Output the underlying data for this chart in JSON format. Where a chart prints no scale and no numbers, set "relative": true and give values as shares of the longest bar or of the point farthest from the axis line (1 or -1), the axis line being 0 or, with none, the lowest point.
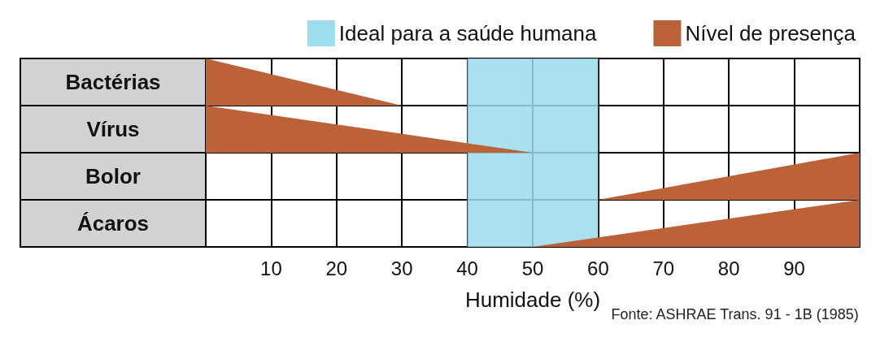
{
  "chart_data": [
    {
      "type": "area",
      "relative": true,
      "ylabel": "Bactérias",
      "xlim": [
        0,
        100
      ],
      "xticks": [
        10,
        20,
        30,
        40,
        50,
        60,
        70,
        80,
        90
      ],
      "grid": "x",
      "tick_labels": false,
      "legend": "top right",
      "bands": [
        {
          "axis": "x",
          "from": 40,
          "to": 60,
          "label": "Ideal para a saúde humana",
          "color": "#9cdcec"
        }
      ],
      "series": [
        {
          "name": "Nível de presença",
          "color": "#bb6238",
          "x": [
            0,
            30
          ],
          "values": [
            1,
            0
          ]
        }
      ]
    },
    {
      "type": "area",
      "relative": true,
      "ylabel": "Vírus",
      "xlim": [
        0,
        100
      ],
      "xticks": [
        10,
        20,
        30,
        40,
        50,
        60,
        70,
        80,
        90
      ],
      "grid": "x",
      "tick_labels": false,
      "bands": [
        {
          "axis": "x",
          "from": 40,
          "to": 60,
          "color": "#9cdcec"
        }
      ],
      "series": [
        {
          "color": "#bb6238",
          "x": [
            0,
            50
          ],
          "values": [
            1,
            0
          ]
        }
      ]
    },
    {
      "type": "area",
      "relative": true,
      "ylabel": "Bolor",
      "xlim": [
        0,
        100
      ],
      "xticks": [
        10,
        20,
        30,
        40,
        50,
        60,
        70,
        80,
        90
      ],
      "grid": "x",
      "tick_labels": false,
      "bands": [
        {
          "axis": "x",
          "from": 40,
          "to": 60,
          "color": "#9cdcec"
        }
      ],
      "series": [
        {
          "color": "#bb6238",
          "x": [
            60,
            100
          ],
          "values": [
            0,
            1
          ]
        }
      ]
    },
    {
      "type": "area",
      "relative": true,
      "ylabel": "Ácaros",
      "xlabel": "Humidade (%)",
      "xlim": [
        0,
        100
      ],
      "xticks": [
        10,
        20,
        30,
        40,
        50,
        60,
        70,
        80,
        90
      ],
      "grid": "x",
      "tick_labels": "x",
      "annotations": [
        "Fonte: ASHRAE Trans. 91 - 1B (1985)"
      ],
      "bands": [
        {
          "axis": "x",
          "from": 40,
          "to": 60,
          "color": "#9cdcec"
        }
      ],
      "series": [
        {
          "color": "#bb6238",
          "x": [
            50,
            100
          ],
          "values": [
            0,
            1
          ]
        }
      ]
    }
  ]
}
